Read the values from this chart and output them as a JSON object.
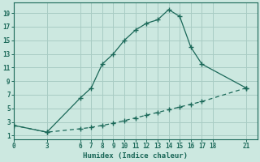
{
  "xlabel": "Humidex (Indice chaleur)",
  "bg_color": "#cce8e0",
  "grid_color": "#a8ccc4",
  "line_color": "#1a6858",
  "upper_x": [
    0,
    3,
    6,
    7,
    8,
    9,
    10,
    11,
    12,
    13,
    14,
    15,
    16,
    17,
    21
  ],
  "upper_y": [
    2.5,
    1.5,
    6.5,
    8.0,
    11.5,
    13.0,
    15.0,
    16.5,
    17.5,
    18.0,
    19.5,
    18.5,
    14.0,
    11.5,
    8.0
  ],
  "lower_x": [
    0,
    3,
    6,
    7,
    8,
    9,
    10,
    11,
    12,
    13,
    14,
    15,
    16,
    17,
    21
  ],
  "lower_y": [
    2.5,
    1.5,
    2.0,
    2.2,
    2.5,
    2.8,
    3.2,
    3.6,
    4.0,
    4.4,
    4.8,
    5.2,
    5.6,
    6.0,
    8.0
  ],
  "xticks": [
    0,
    3,
    6,
    7,
    8,
    9,
    10,
    11,
    12,
    13,
    14,
    15,
    16,
    17,
    18,
    21
  ],
  "yticks": [
    1,
    3,
    5,
    7,
    9,
    11,
    13,
    15,
    17,
    19
  ],
  "xlim": [
    0,
    22
  ],
  "ylim": [
    0.5,
    20.5
  ]
}
